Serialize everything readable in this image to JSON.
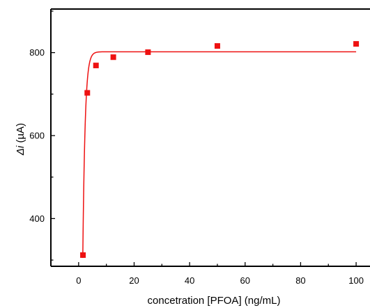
{
  "chart_data": {
    "type": "scatter",
    "xlabel": "concetration [PFOA] (ng/mL)",
    "ylabel": {
      "italic": "Δi",
      "rest": " (µA)"
    },
    "xlim": [
      -10,
      105
    ],
    "ylim": [
      285,
      905
    ],
    "xticks": [
      0,
      20,
      40,
      60,
      80,
      100
    ],
    "yticks": [
      400,
      600,
      800
    ],
    "grid": false,
    "colors": {
      "marker": "#ee1111",
      "fit_line": "#ee1111",
      "axis": "#000000"
    },
    "series": [
      {
        "x": [
          1.56,
          3.125,
          6.25,
          12.5,
          25,
          50,
          100
        ],
        "y": [
          312,
          703,
          769,
          789,
          801,
          816,
          821
        ]
      }
    ],
    "fit": {
      "type": "exponential-saturation",
      "x_start": 1.5,
      "x_end": 100,
      "y_start": 305,
      "plateau": 802,
      "rate": 1.2
    }
  }
}
